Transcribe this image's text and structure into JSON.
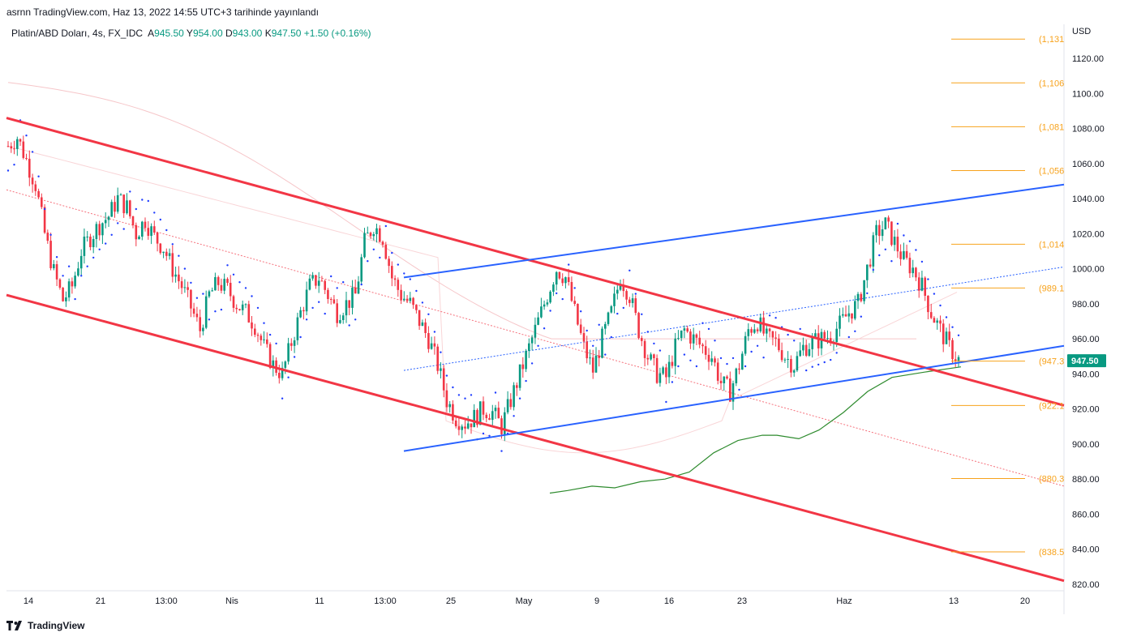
{
  "header": {
    "published": "asrnn TradingView.com, Haz 13, 2022 14:55 UTC+3 tarihinde yayınlandı"
  },
  "legend": {
    "symbol": "Platin/ABD Doları, 4s, FX_IDC",
    "open_label": "A",
    "open": "945.50",
    "high_label": "Y",
    "high": "954.00",
    "low_label": "D",
    "low": "943.00",
    "close_label": "K",
    "close": "947.50",
    "change": "+1.50 (+0.16%)"
  },
  "footer": {
    "brand": "TradingView",
    "logo_icon": "tradingview-logo-icon"
  },
  "colors": {
    "up": "#089981",
    "down": "#f23645",
    "channel_red": "#f23645",
    "channel_blue": "#2962ff",
    "fib": "#f7a21b",
    "ma_green": "#2e8b2e",
    "sar": "#1e3cff",
    "price_tag": "#089981"
  },
  "chart_data": {
    "type": "candlestick",
    "currency": "USD",
    "ylim": [
      815,
      1140
    ],
    "x_ticks": [
      "14",
      "21",
      "13:00",
      "Nis",
      "11",
      "13:00",
      "25",
      "May",
      "9",
      "16",
      "23",
      "Haz",
      "13",
      "20"
    ],
    "y_ticks": [
      "820.00",
      "840.00",
      "860.00",
      "880.00",
      "900.00",
      "920.00",
      "940.00",
      "960.00",
      "980.00",
      "1000.00",
      "1020.00",
      "1040.00",
      "1060.00",
      "1080.00",
      "1100.00",
      "1120.00"
    ],
    "current_price": "947.50",
    "fib_levels": [
      {
        "value": 1131,
        "label": "(1,131"
      },
      {
        "value": 1106,
        "label": "(1,106"
      },
      {
        "value": 1081,
        "label": "(1,081"
      },
      {
        "value": 1056,
        "label": "(1,056"
      },
      {
        "value": 1014,
        "label": "(1,014"
      },
      {
        "value": 989,
        "label": "(989.1"
      },
      {
        "value": 947.3,
        "label": "(947.3"
      },
      {
        "value": 922,
        "label": "(922.1"
      },
      {
        "value": 880.3,
        "label": "(880.3"
      },
      {
        "value": 838.5,
        "label": "(838.5"
      }
    ],
    "close_path": [
      1070,
      1075,
      1062,
      1048,
      1020,
      998,
      982,
      990,
      1010,
      1018,
      1025,
      1030,
      1040,
      1035,
      1020,
      1028,
      1018,
      1012,
      1000,
      990,
      978,
      965,
      985,
      992,
      988,
      980,
      975,
      968,
      955,
      945,
      940,
      958,
      975,
      990,
      995,
      985,
      975,
      980,
      985,
      1015,
      1025,
      1018,
      995,
      985,
      980,
      970,
      960,
      945,
      925,
      915,
      912,
      915,
      920,
      918,
      910,
      925,
      940,
      955,
      970,
      985,
      1000,
      995,
      975,
      955,
      942,
      960,
      975,
      995,
      985,
      965,
      950,
      940,
      938,
      955,
      965,
      960,
      955,
      950,
      935,
      930,
      945,
      965,
      970,
      960,
      958,
      950,
      945,
      955,
      958,
      960,
      962,
      968,
      975,
      980,
      1000,
      1020,
      1025,
      1015,
      1005,
      1000,
      990,
      975,
      965,
      955,
      948
    ]
  }
}
